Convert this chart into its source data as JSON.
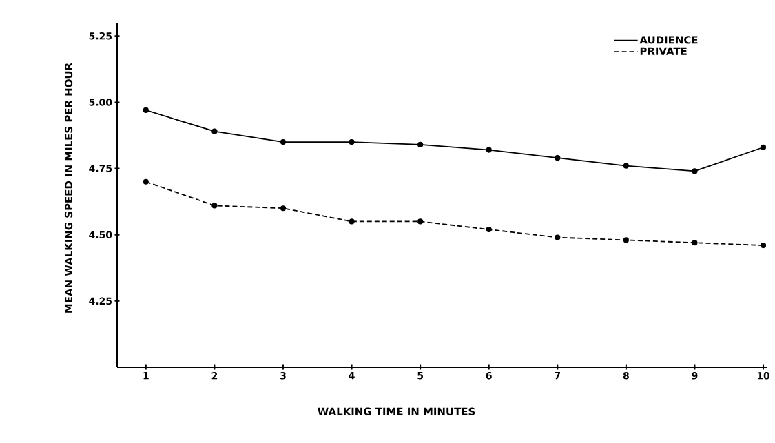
{
  "chart_data": {
    "type": "line",
    "xlabel": "WALKING TIME IN MINUTES",
    "ylabel": "MEAN WALKING SPEED IN MILES PER HOUR",
    "x": [
      1,
      2,
      3,
      4,
      5,
      6,
      7,
      8,
      9,
      10
    ],
    "series": [
      {
        "name": "AUDIENCE",
        "color": "#000000",
        "line_style": "solid",
        "values": [
          4.97,
          4.89,
          4.85,
          4.85,
          4.84,
          4.82,
          4.79,
          4.76,
          4.74,
          4.83
        ]
      },
      {
        "name": "PRIVATE",
        "color": "#000000",
        "line_style": "dashed",
        "values": [
          4.7,
          4.61,
          4.6,
          4.55,
          4.55,
          4.52,
          4.49,
          4.48,
          4.47,
          4.46
        ]
      }
    ],
    "xlim": [
      0.58,
      10.05
    ],
    "ylim": [
      4.0,
      5.3
    ],
    "xticks": [
      1,
      2,
      3,
      4,
      5,
      6,
      7,
      8,
      9,
      10
    ],
    "yticks": [
      4.25,
      {
        "value": 4.5,
        "label": "4.50"
      },
      {
        "value": 4.75,
        "label": "4.75"
      },
      {
        "value": 5.0,
        "label": "5.00"
      },
      5.25
    ],
    "marker": "circle",
    "grid": false,
    "legend": "top right"
  }
}
